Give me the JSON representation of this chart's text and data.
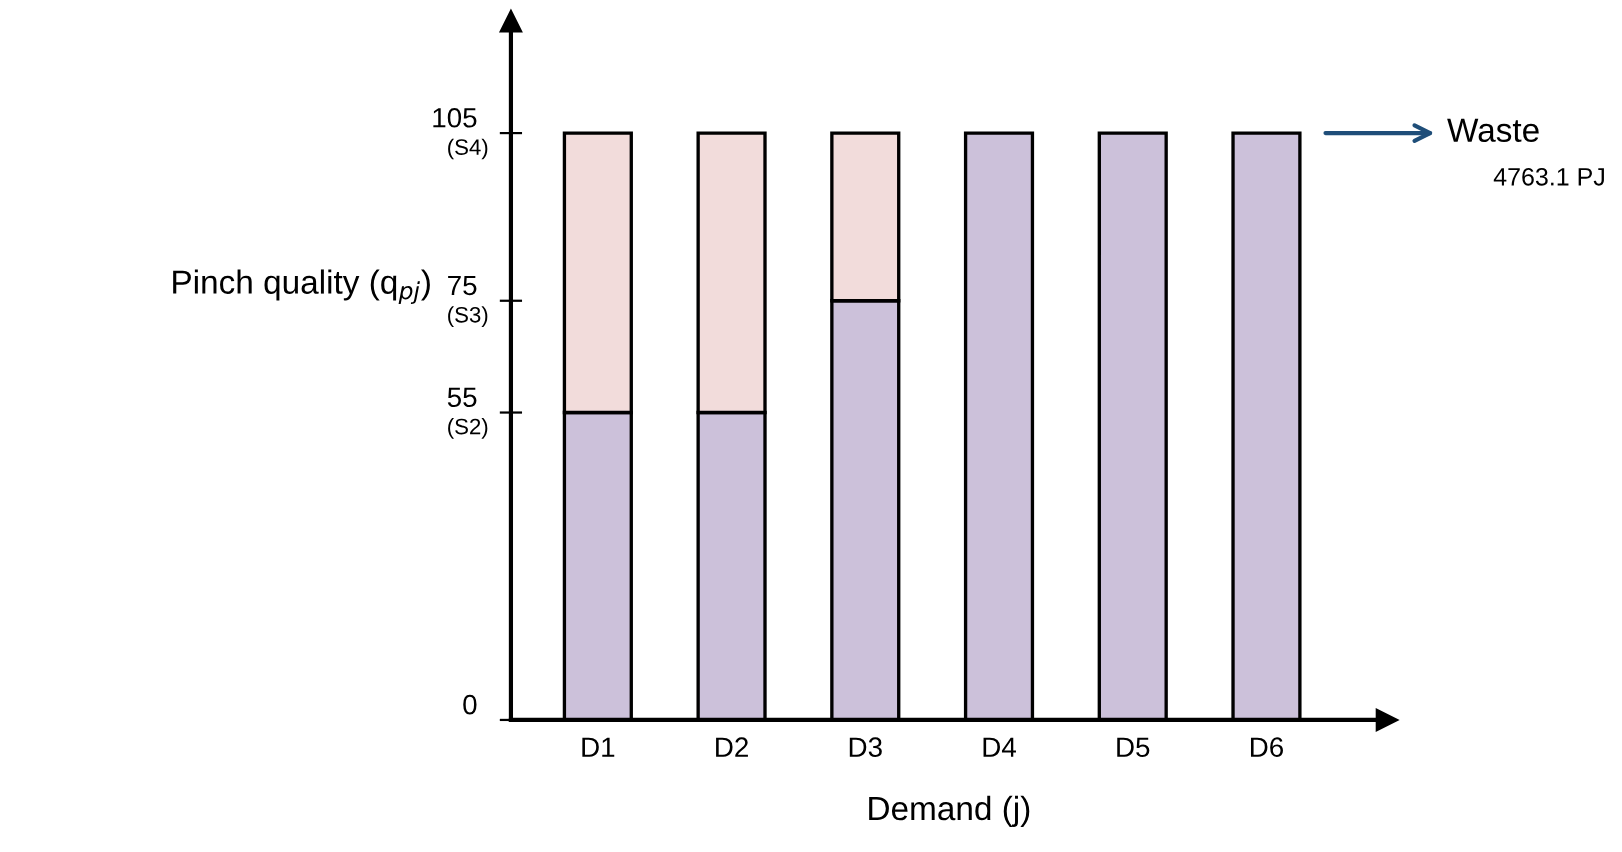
{
  "chart_data": {
    "type": "bar",
    "stacked": true,
    "xlabel": "Demand (j)",
    "ylabel": "Pinch quality (q$_{pj}$)",
    "categories": [
      "D1",
      "D2",
      "D3",
      "D4",
      "D5",
      "D6"
    ],
    "series": [
      {
        "color": "#ccc1da",
        "values": [
          55,
          55,
          75,
          105,
          105,
          105
        ]
      },
      {
        "color": "#f2dcdb",
        "values": [
          50,
          50,
          30,
          0,
          0,
          0
        ]
      }
    ],
    "ylim": [
      0,
      125
    ],
    "yticks": [
      0,
      55,
      75,
      105
    ],
    "annotations": [
      "(S2)",
      "(S3)",
      "(S4)",
      "Waste",
      "4763.1 PJ"
    ],
    "grid": false,
    "legend": false
  }
}
